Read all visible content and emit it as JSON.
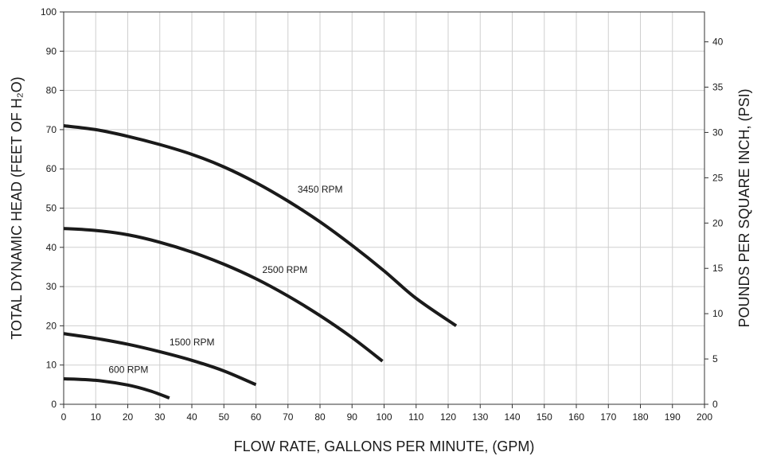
{
  "chart_data": {
    "type": "line",
    "xlabel": "FLOW RATE, GALLONS PER MINUTE, (GPM)",
    "ylabel": "TOTAL DYNAMIC HEAD (FEET OF H₂O)",
    "y2label": "POUNDS PER SQUARE INCH, (PSI)",
    "xlim": [
      0,
      200
    ],
    "ylim": [
      0,
      100
    ],
    "y2lim": [
      0,
      43.3
    ],
    "xticks": [
      0,
      10,
      20,
      30,
      40,
      50,
      60,
      70,
      80,
      90,
      100,
      110,
      120,
      130,
      140,
      150,
      160,
      170,
      180,
      190,
      200
    ],
    "yticks": [
      0,
      10,
      20,
      30,
      40,
      50,
      60,
      70,
      80,
      90,
      100
    ],
    "y2ticks": [
      0,
      5,
      10,
      15,
      20,
      25,
      30,
      35,
      40
    ],
    "grid": true,
    "series": [
      {
        "name": "3450 RPM",
        "x": [
          0,
          10,
          20,
          30,
          40,
          50,
          60,
          70,
          80,
          90,
          100,
          110,
          122.5
        ],
        "y": [
          71,
          70,
          68.3,
          66.2,
          63.7,
          60.5,
          56.5,
          51.8,
          46.5,
          40.5,
          34,
          27,
          20
        ]
      },
      {
        "name": "2500 RPM",
        "x": [
          0,
          10,
          20,
          30,
          40,
          50,
          60,
          70,
          80,
          90,
          99.5
        ],
        "y": [
          44.8,
          44.3,
          43.2,
          41.3,
          38.8,
          35.7,
          32,
          27.6,
          22.6,
          17,
          11
        ]
      },
      {
        "name": "1500 RPM",
        "x": [
          0,
          10,
          20,
          30,
          40,
          50,
          60
        ],
        "y": [
          18,
          16.8,
          15.3,
          13.4,
          11.2,
          8.5,
          5
        ]
      },
      {
        "name": "600 RPM",
        "x": [
          0,
          10,
          20,
          27,
          33
        ],
        "y": [
          6.5,
          6.1,
          4.9,
          3.4,
          1.6
        ]
      }
    ]
  }
}
